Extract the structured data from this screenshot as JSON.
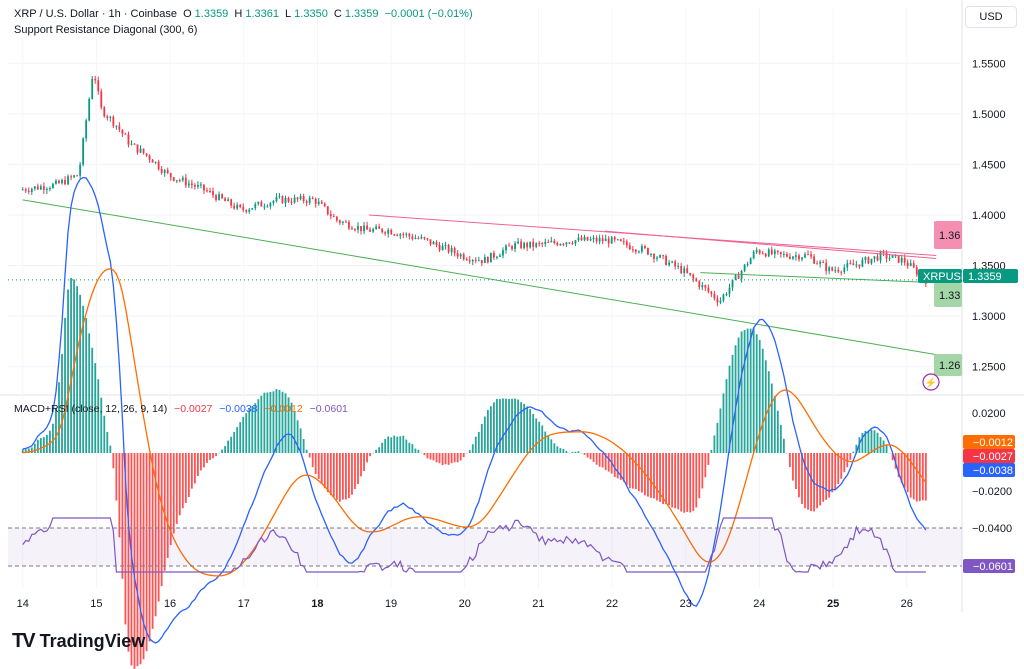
{
  "header": {
    "symbol": "XRP / U.S. Dollar · 1h · Coinbase",
    "o_label": "O",
    "o_value": "1.3359",
    "h_label": "H",
    "h_value": "1.3361",
    "l_label": "L",
    "l_value": "1.3350",
    "c_label": "C",
    "c_value": "1.3359",
    "change": "−0.0001 (−0.01%)",
    "indicator": "Support Resistance Diagonal (300, 6)"
  },
  "currency_button": "USD",
  "macd_rsi": {
    "title": "MACD+RSI (close, 12, 26, 9, 14)",
    "v1": "−0.0027",
    "v2": "−0.0038",
    "v3": "−0.0012",
    "v4": "−0.0601"
  },
  "price_ticks": [
    "1.5500",
    "1.5000",
    "1.4500",
    "1.4000",
    "1.3500",
    "1.3000",
    "1.2500"
  ],
  "osc_ticks": [
    "0.0200",
    "−0.0200",
    "−0.0400"
  ],
  "x_ticks": [
    "14",
    "15",
    "16",
    "17",
    "18",
    "19",
    "20",
    "21",
    "22",
    "23",
    "24",
    "25",
    "26"
  ],
  "price_badges": {
    "resistance": "1.36",
    "symbol_label": "XRPUSD",
    "last": "1.3359",
    "support_upper": "1.33",
    "support_lower": "1.26"
  },
  "osc_badges": [
    "−0.0012",
    "−0.0027",
    "−0.0038",
    "−0.0601"
  ],
  "logo": "TradingView",
  "colors": {
    "up": "#089981",
    "down": "#f23645",
    "macd": "#2962ff",
    "signal": "#ff6d00",
    "rsi": "#7e57c2",
    "support": "#4caf50",
    "resistance": "#f06292"
  },
  "chart_data": {
    "type": "candlestick",
    "title": "XRP / U.S. Dollar · 1h · Coinbase",
    "x_ticks": [
      "14",
      "15",
      "16",
      "17",
      "18",
      "19",
      "20",
      "21",
      "22",
      "23",
      "24",
      "25",
      "26"
    ],
    "ylim": [
      1.225,
      1.575
    ],
    "series": [
      {
        "name": "XRPUSD",
        "type": "close",
        "x": [
          14,
          14.5,
          14.8,
          15,
          15.1,
          15.3,
          15.5,
          15.8,
          16,
          16.5,
          17,
          17.5,
          18,
          18.3,
          18.7,
          19,
          19.5,
          20,
          20.3,
          20.7,
          21,
          21.5,
          22,
          22.5,
          23,
          23.5,
          23.7,
          24,
          24.3,
          24.7,
          25,
          25.3,
          25.7,
          26,
          26.3
        ],
        "y": [
          1.425,
          1.43,
          1.44,
          1.545,
          1.505,
          1.49,
          1.47,
          1.455,
          1.44,
          1.425,
          1.405,
          1.415,
          1.415,
          1.395,
          1.385,
          1.385,
          1.375,
          1.36,
          1.355,
          1.37,
          1.37,
          1.375,
          1.375,
          1.365,
          1.345,
          1.315,
          1.335,
          1.365,
          1.36,
          1.36,
          1.345,
          1.35,
          1.36,
          1.355,
          1.3359
        ]
      }
    ],
    "support_lines": [
      {
        "x": [
          14,
          26.4
        ],
        "y": [
          1.415,
          1.262
        ]
      }
    ],
    "resistance_lines": [
      {
        "x": [
          18.7,
          26.4
        ],
        "y": [
          1.4,
          1.36
        ]
      }
    ],
    "macd": {
      "ylim": [
        -0.03,
        0.03
      ]
    },
    "rsi": {
      "levels": [
        -0.04,
        -0.0601
      ]
    }
  }
}
